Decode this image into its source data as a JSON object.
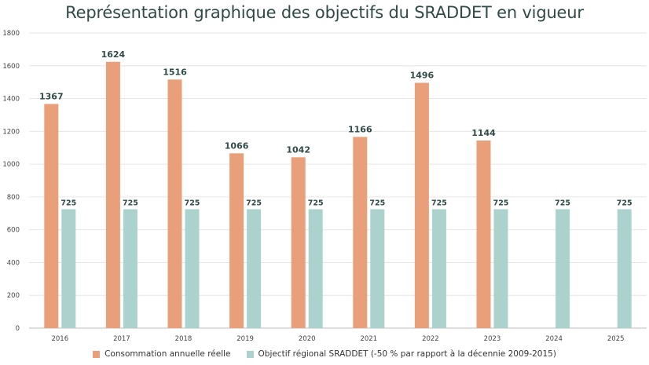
{
  "chart_data": {
    "type": "bar",
    "title": "Représentation graphique des objectifs du SRADDET en vigueur",
    "xlabel": "",
    "ylabel": "",
    "ylim": [
      0,
      1800
    ],
    "yticks": [
      0,
      200,
      400,
      600,
      800,
      1000,
      1200,
      1400,
      1600,
      1800
    ],
    "grid": true,
    "legend_position": "bottom",
    "categories": [
      "2016",
      "2017",
      "2018",
      "2019",
      "2020",
      "2021",
      "2022",
      "2023",
      "2024",
      "2025"
    ],
    "series": [
      {
        "name": "Consommation annuelle réelle",
        "color": "#e9a07a",
        "values": [
          1367,
          1624,
          1516,
          1066,
          1042,
          1166,
          1496,
          1144,
          null,
          null
        ]
      },
      {
        "name": "Objectif régional SRADDET (-50 % par rapport à la décennie 2009-2015)",
        "color": "#abd2cd",
        "values": [
          725,
          725,
          725,
          725,
          725,
          725,
          725,
          725,
          725,
          725
        ]
      }
    ]
  }
}
